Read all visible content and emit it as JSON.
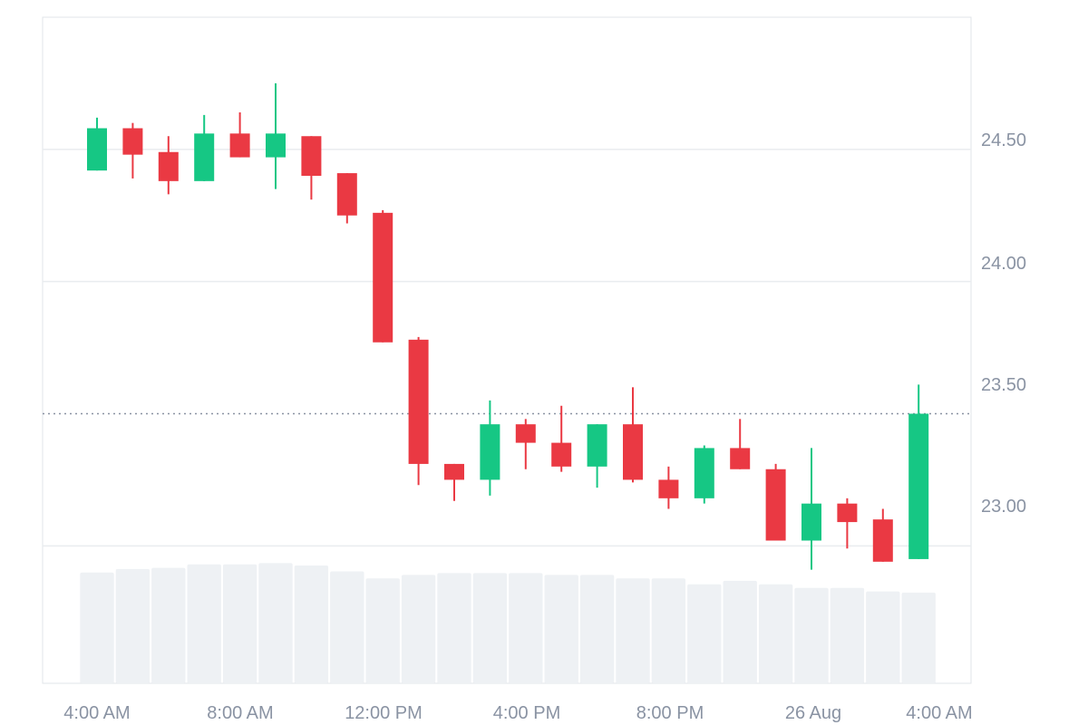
{
  "chart_data": {
    "type": "candlestick",
    "x_tick_labels": [
      "4:00 AM",
      "8:00 AM",
      "12:00 PM",
      "4:00 PM",
      "8:00 PM",
      "26 Aug",
      "4:00 AM"
    ],
    "y_tick_labels": [
      "24.50",
      "24.00",
      "23.50",
      "23.00"
    ],
    "y_ticks": [
      24.5,
      24.0,
      23.5,
      23.0
    ],
    "ylim": [
      22.48,
      25.0
    ],
    "grid": true,
    "reference_line": 23.5,
    "colors": {
      "up": "#16c784",
      "down": "#ea3943",
      "volume": "#eef1f4",
      "grid": "#e9ecef",
      "frame": "#e1e4e8",
      "tick_text": "#8a93a3",
      "reference": "#8a93a3"
    },
    "candles": [
      {
        "open": 24.42,
        "high": 24.62,
        "low": 24.42,
        "close": 24.58
      },
      {
        "open": 24.58,
        "high": 24.6,
        "low": 24.39,
        "close": 24.48
      },
      {
        "open": 24.49,
        "high": 24.55,
        "low": 24.33,
        "close": 24.38
      },
      {
        "open": 24.38,
        "high": 24.63,
        "low": 24.38,
        "close": 24.56
      },
      {
        "open": 24.56,
        "high": 24.64,
        "low": 24.47,
        "close": 24.47
      },
      {
        "open": 24.47,
        "high": 24.75,
        "low": 24.35,
        "close": 24.56
      },
      {
        "open": 24.55,
        "high": 24.55,
        "low": 24.31,
        "close": 24.4
      },
      {
        "open": 24.41,
        "high": 24.41,
        "low": 24.22,
        "close": 24.25
      },
      {
        "open": 24.26,
        "high": 24.27,
        "low": 23.77,
        "close": 23.77
      },
      {
        "open": 23.78,
        "high": 23.79,
        "low": 23.23,
        "close": 23.31
      },
      {
        "open": 23.31,
        "high": 23.31,
        "low": 23.17,
        "close": 23.25
      },
      {
        "open": 23.25,
        "high": 23.55,
        "low": 23.19,
        "close": 23.46
      },
      {
        "open": 23.46,
        "high": 23.48,
        "low": 23.29,
        "close": 23.39
      },
      {
        "open": 23.39,
        "high": 23.53,
        "low": 23.28,
        "close": 23.3
      },
      {
        "open": 23.3,
        "high": 23.46,
        "low": 23.22,
        "close": 23.46
      },
      {
        "open": 23.46,
        "high": 23.6,
        "low": 23.24,
        "close": 23.25
      },
      {
        "open": 23.25,
        "high": 23.3,
        "low": 23.14,
        "close": 23.18
      },
      {
        "open": 23.18,
        "high": 23.38,
        "low": 23.16,
        "close": 23.37
      },
      {
        "open": 23.37,
        "high": 23.48,
        "low": 23.29,
        "close": 23.29
      },
      {
        "open": 23.29,
        "high": 23.31,
        "low": 23.02,
        "close": 23.02
      },
      {
        "open": 23.02,
        "high": 23.37,
        "low": 22.91,
        "close": 23.16
      },
      {
        "open": 23.16,
        "high": 23.18,
        "low": 22.99,
        "close": 23.09
      },
      {
        "open": 23.1,
        "high": 23.14,
        "low": 22.94,
        "close": 22.94
      },
      {
        "open": 22.95,
        "high": 23.61,
        "low": 22.95,
        "close": 23.5
      }
    ],
    "volume": [
      0.47,
      0.485,
      0.49,
      0.505,
      0.505,
      0.51,
      0.5,
      0.475,
      0.445,
      0.46,
      0.468,
      0.468,
      0.468,
      0.46,
      0.46,
      0.445,
      0.445,
      0.42,
      0.435,
      0.42,
      0.405,
      0.405,
      0.39,
      0.385
    ]
  }
}
